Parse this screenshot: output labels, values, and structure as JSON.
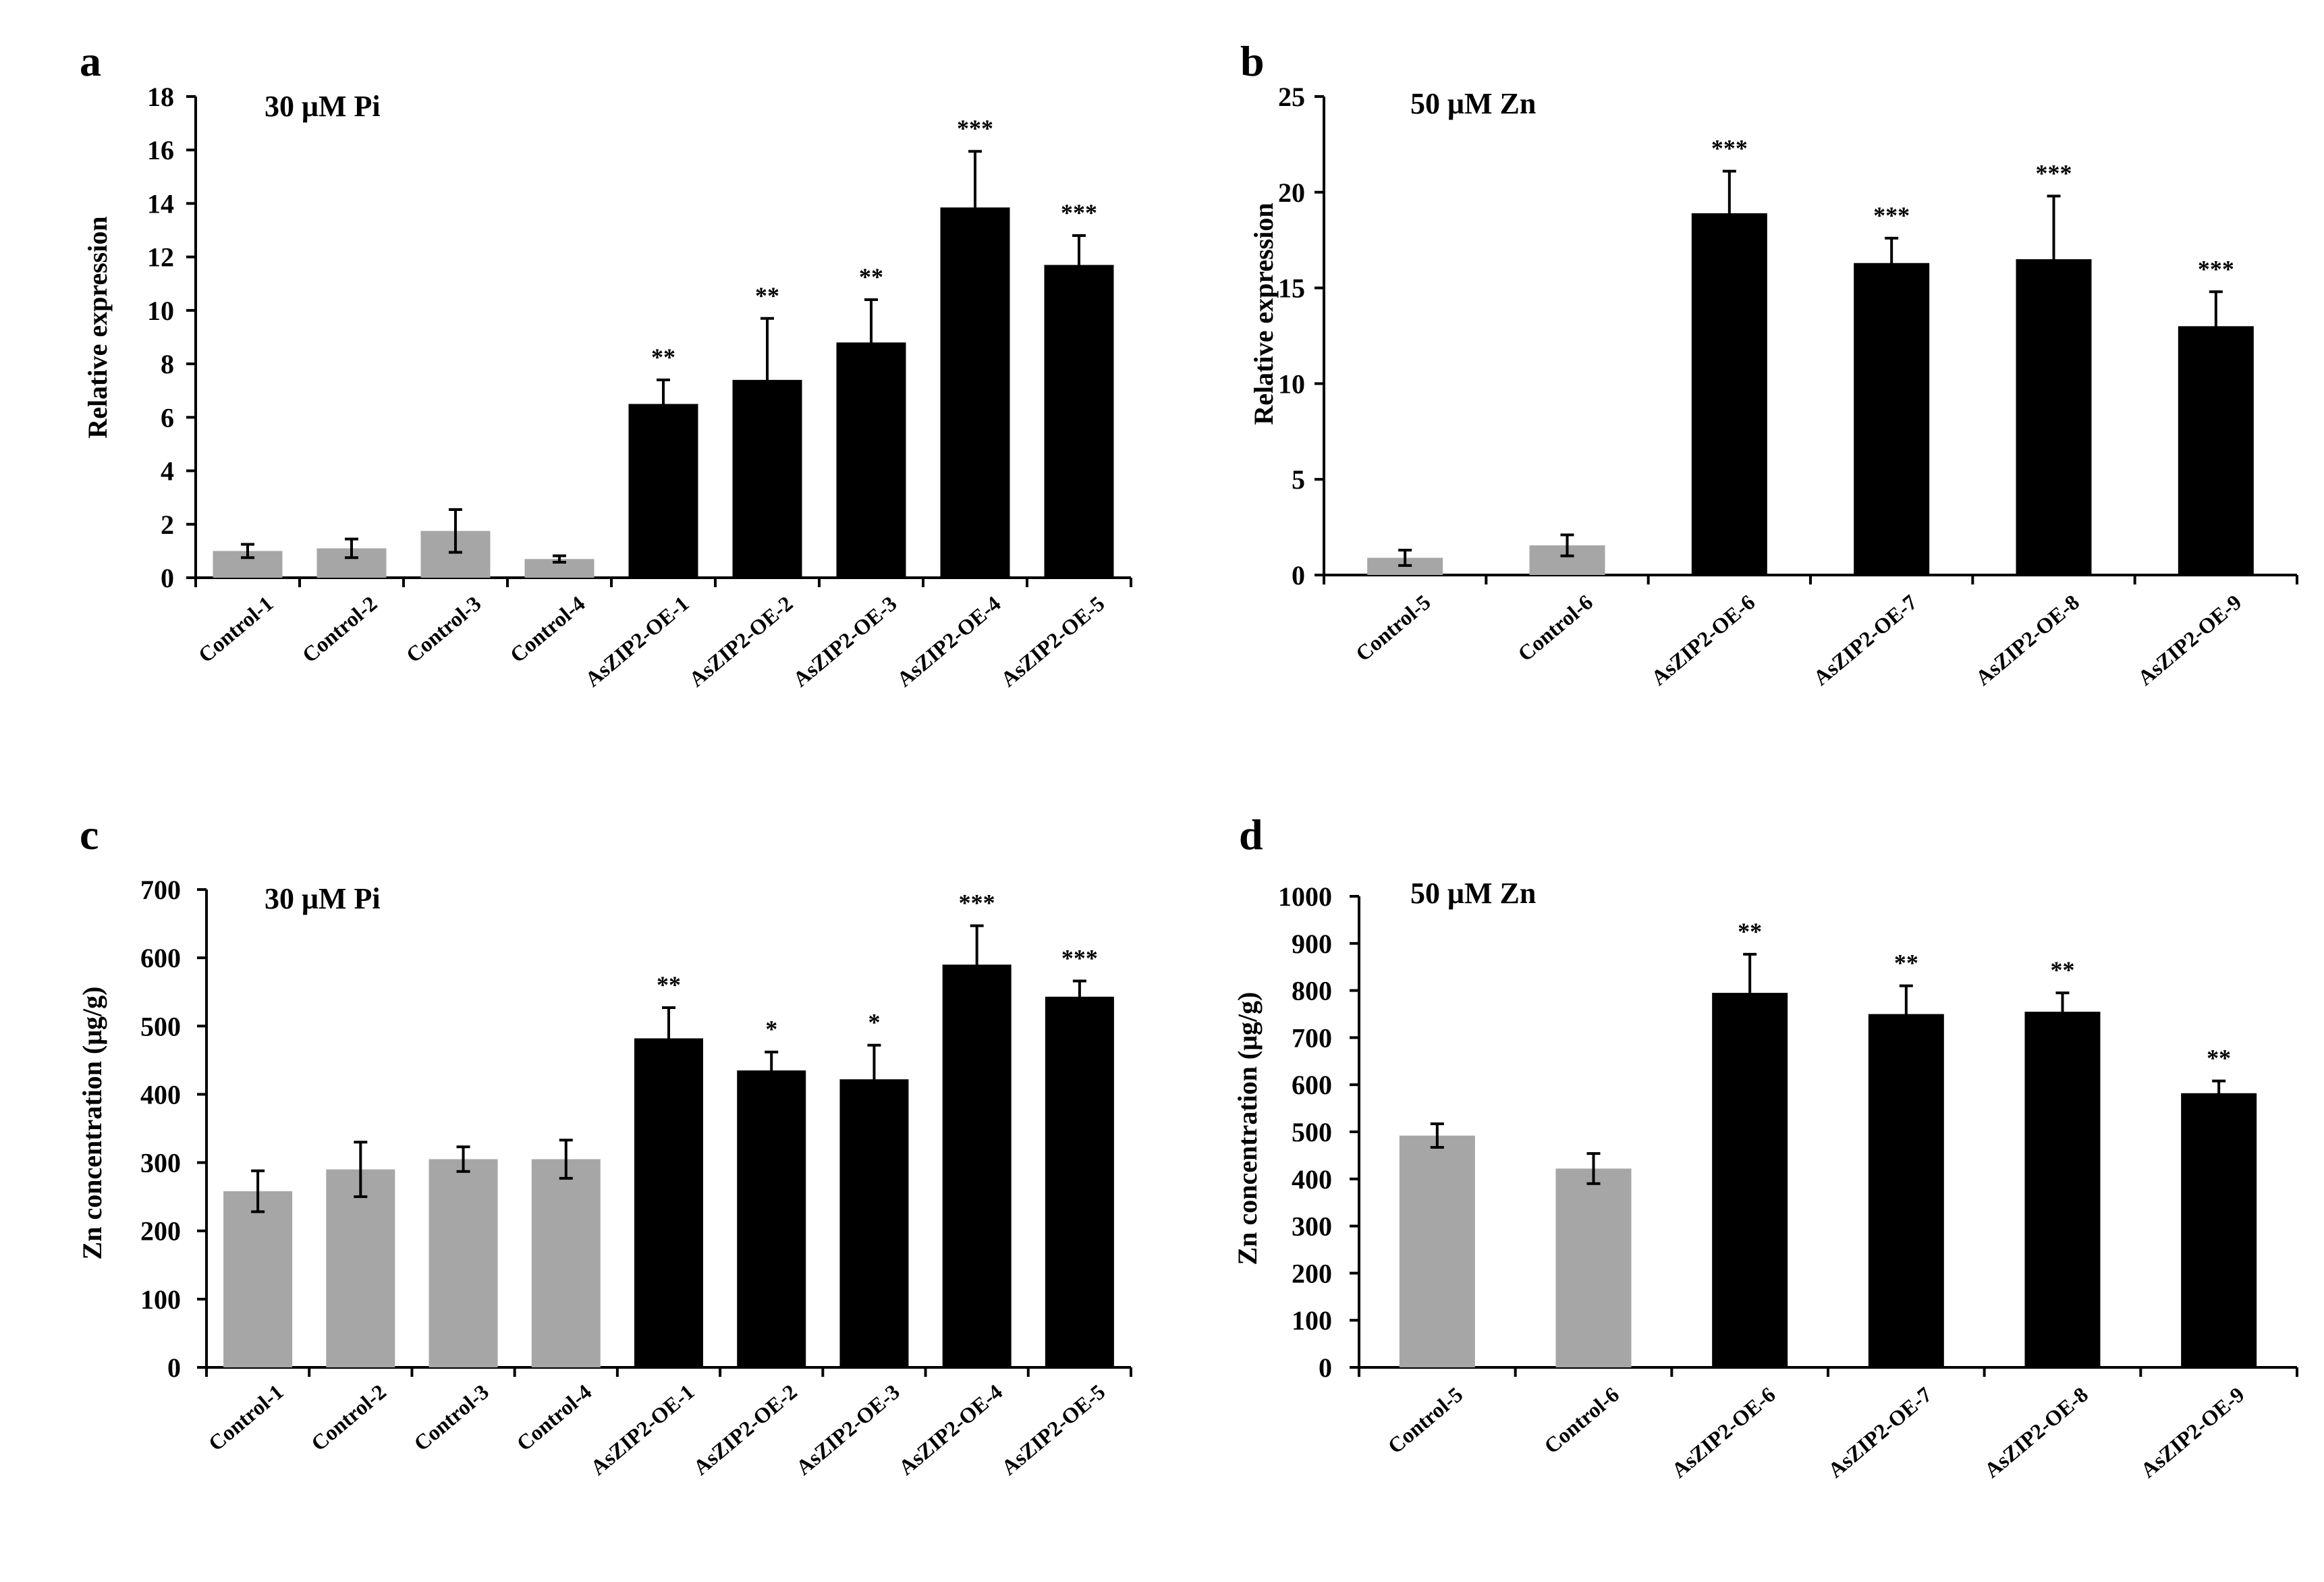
{
  "figure": {
    "colors": {
      "control": "#a6a6a6",
      "overexpression": "#000000",
      "axis": "#000000"
    },
    "panels": [
      {
        "id": "a",
        "condition": "30 μM Pi",
        "ylabel": "Relative expression",
        "yticks": [
          "0",
          "2",
          "4",
          "6",
          "8",
          "10",
          "12",
          "14",
          "16",
          "18"
        ]
      },
      {
        "id": "b",
        "condition": "50 μM Zn",
        "ylabel": "Relative expression",
        "yticks": [
          "0",
          "5",
          "10",
          "15",
          "20",
          "25"
        ]
      },
      {
        "id": "c",
        "condition": "30 μM Pi",
        "ylabel": "Zn concentration (μg/g)",
        "yticks": [
          "0",
          "100",
          "200",
          "300",
          "400",
          "500",
          "600",
          "700"
        ]
      },
      {
        "id": "d",
        "condition": "50 μM Zn",
        "ylabel": "Zn concentration (μg/g)",
        "yticks": [
          "0",
          "100",
          "200",
          "300",
          "400",
          "500",
          "600",
          "700",
          "800",
          "900",
          "1000"
        ]
      }
    ]
  },
  "chart_data": [
    {
      "type": "bar",
      "panel": "a",
      "title": "30 μM Pi",
      "xlabel": "",
      "ylabel": "Relative expression",
      "ylim": [
        0,
        18
      ],
      "ytick_step": 2,
      "categories": [
        "Control-1",
        "Control-2",
        "Control-3",
        "Control-4",
        "AsZIP2-OE-1",
        "AsZIP2-OE-2",
        "AsZIP2-OE-3",
        "AsZIP2-OE-4",
        "AsZIP2-OE-5"
      ],
      "groups": [
        "control",
        "control",
        "control",
        "control",
        "oe",
        "oe",
        "oe",
        "oe",
        "oe"
      ],
      "values": [
        1.0,
        1.1,
        1.75,
        0.7,
        6.5,
        7.4,
        8.8,
        13.85,
        11.7
      ],
      "errors": [
        0.25,
        0.35,
        0.8,
        0.12,
        0.9,
        2.3,
        1.6,
        2.1,
        1.1
      ],
      "significance": [
        "",
        "",
        "",
        "",
        "**",
        "**",
        "**",
        "***",
        "***"
      ]
    },
    {
      "type": "bar",
      "panel": "b",
      "title": "50 μM Zn",
      "xlabel": "",
      "ylabel": "Relative expression",
      "ylim": [
        0,
        25
      ],
      "ytick_step": 5,
      "categories": [
        "Control-5",
        "Control-6",
        "AsZIP2-OE-6",
        "AsZIP2-OE-7",
        "AsZIP2-OE-8",
        "AsZIP2-OE-9"
      ],
      "groups": [
        "control",
        "control",
        "oe",
        "oe",
        "oe",
        "oe"
      ],
      "values": [
        0.9,
        1.55,
        18.9,
        16.3,
        16.5,
        13.0
      ],
      "errors": [
        0.4,
        0.55,
        2.2,
        1.3,
        3.3,
        1.8
      ],
      "significance": [
        "",
        "",
        "***",
        "***",
        "***",
        "***"
      ]
    },
    {
      "type": "bar",
      "panel": "c",
      "title": "30 μM Pi",
      "xlabel": "",
      "ylabel": "Zn concentration (μg/g)",
      "ylim": [
        0,
        700
      ],
      "ytick_step": 100,
      "categories": [
        "Control-1",
        "Control-2",
        "Control-3",
        "Control-4",
        "AsZIP2-OE-1",
        "AsZIP2-OE-2",
        "AsZIP2-OE-3",
        "AsZIP2-OE-4",
        "AsZIP2-OE-5"
      ],
      "groups": [
        "control",
        "control",
        "control",
        "control",
        "oe",
        "oe",
        "oe",
        "oe",
        "oe"
      ],
      "values": [
        258,
        290,
        305,
        305,
        482,
        435,
        422,
        590,
        543
      ],
      "errors": [
        30,
        40,
        18,
        28,
        45,
        27,
        50,
        57,
        23
      ],
      "significance": [
        "",
        "",
        "",
        "",
        "**",
        "*",
        "*",
        "***",
        "***"
      ]
    },
    {
      "type": "bar",
      "panel": "d",
      "title": "50 μM Zn",
      "xlabel": "",
      "ylabel": "Zn concentration (μg/g)",
      "ylim": [
        0,
        1000
      ],
      "ytick_step": 100,
      "categories": [
        "Control-5",
        "Control-6",
        "AsZIP2-OE-6",
        "AsZIP2-OE-7",
        "AsZIP2-OE-8",
        "AsZIP2-OE-9"
      ],
      "groups": [
        "control",
        "control",
        "oe",
        "oe",
        "oe",
        "oe"
      ],
      "values": [
        492,
        422,
        795,
        750,
        755,
        582
      ],
      "errors": [
        25,
        32,
        82,
        60,
        40,
        26
      ],
      "significance": [
        "",
        "",
        "**",
        "**",
        "**",
        "**"
      ]
    }
  ]
}
